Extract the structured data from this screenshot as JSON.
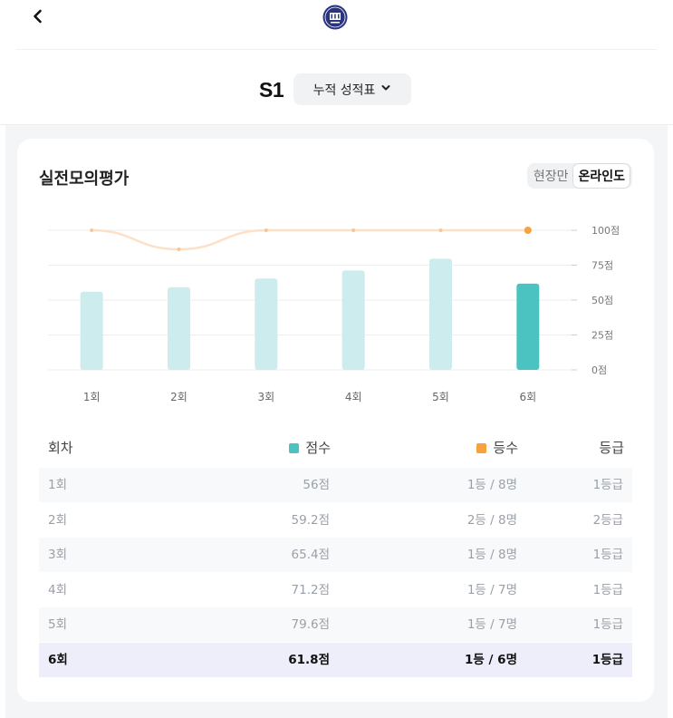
{
  "header": {
    "logo_icon": "university-seal-icon",
    "season": "S1",
    "selector_label": "누적 성적표"
  },
  "card": {
    "title": "실전모의평가",
    "toggle": [
      "현장만",
      "온라인도"
    ],
    "active_toggle": 1
  },
  "chart_data": {
    "type": "bar",
    "categories": [
      "1회",
      "2회",
      "3회",
      "4회",
      "5회",
      "6회"
    ],
    "series": [
      {
        "name": "점수",
        "type": "bar",
        "values": [
          56,
          59.2,
          65.4,
          71.2,
          79.6,
          61.8
        ]
      },
      {
        "name": "등수",
        "type": "line",
        "values": [
          1,
          2,
          1,
          1,
          1,
          1
        ]
      }
    ],
    "y_ticks": [
      "0점",
      "25점",
      "50점",
      "75점",
      "100점"
    ],
    "ylim": [
      0,
      100
    ],
    "highlight_index": 5,
    "colors": {
      "bar": "#cdecee",
      "bar_highlight": "#4bc3c1",
      "line": "#fde1c6",
      "line_dot": "#f9a13a",
      "grid": "#eeeeee"
    }
  },
  "table": {
    "headers": [
      "회차",
      "점수",
      "등수",
      "등급"
    ],
    "legend_colors": {
      "score": "#4bc3c1",
      "rank": "#f9a13a"
    },
    "rows": [
      {
        "round": "1회",
        "score": "56점",
        "rank": "1등 / 8명",
        "grade": "1등급"
      },
      {
        "round": "2회",
        "score": "59.2점",
        "rank": "2등 / 8명",
        "grade": "2등급"
      },
      {
        "round": "3회",
        "score": "65.4점",
        "rank": "1등 / 8명",
        "grade": "1등급"
      },
      {
        "round": "4회",
        "score": "71.2점",
        "rank": "1등 / 7명",
        "grade": "1등급"
      },
      {
        "round": "5회",
        "score": "79.6점",
        "rank": "1등 / 7명",
        "grade": "1등급"
      },
      {
        "round": "6회",
        "score": "61.8점",
        "rank": "1등 / 6명",
        "grade": "1등급"
      }
    ]
  }
}
